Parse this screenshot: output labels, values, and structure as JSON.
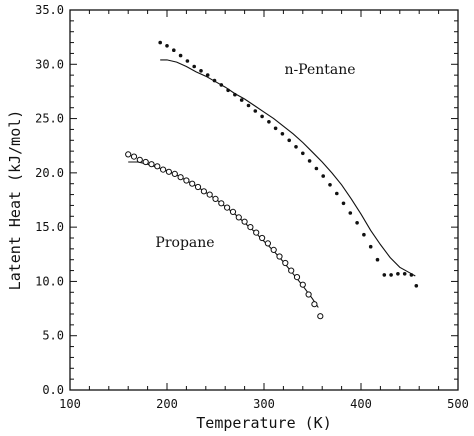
{
  "chart_data": {
    "type": "scatter",
    "title": "",
    "xlabel": "Temperature (K)",
    "ylabel": "Latent Heat (kJ/mol)",
    "xlim": [
      100,
      500
    ],
    "ylim": [
      0.0,
      35.0
    ],
    "x_ticks": [
      "100",
      "200",
      "300",
      "400",
      "500"
    ],
    "y_ticks": [
      "0.0",
      "5.0",
      "10.0",
      "15.0",
      "20.0",
      "25.0",
      "30.0",
      "35.0"
    ],
    "grid": false,
    "legend": "none",
    "annotations": [
      {
        "id": "pentane",
        "text": "n-Pentane"
      },
      {
        "id": "propane",
        "text": "Propane"
      }
    ],
    "series": [
      {
        "marker": "filled-dot",
        "points": {
          "x": [
            193,
            200,
            207,
            214,
            221,
            228,
            235,
            242,
            249,
            256,
            263,
            270,
            277,
            284,
            291,
            298,
            305,
            312,
            319,
            326,
            333,
            340,
            347,
            354,
            361,
            368,
            375,
            382,
            389,
            396,
            403,
            410,
            417,
            424,
            431,
            438,
            445,
            452,
            457
          ],
          "y": [
            32.0,
            31.7,
            31.3,
            30.8,
            30.3,
            29.8,
            29.4,
            29.0,
            28.5,
            28.1,
            27.6,
            27.2,
            26.7,
            26.2,
            25.7,
            25.2,
            24.7,
            24.1,
            23.6,
            23.0,
            22.4,
            21.8,
            21.1,
            20.4,
            19.7,
            18.9,
            18.1,
            17.2,
            16.3,
            15.4,
            14.3,
            13.2,
            12.0,
            10.6,
            10.6,
            10.7,
            10.7,
            10.6,
            9.6
          ]
        },
        "fit_curve": {
          "x": [
            193,
            200,
            210,
            220,
            230,
            240,
            250,
            260,
            270,
            280,
            290,
            300,
            310,
            320,
            330,
            340,
            350,
            360,
            370,
            380,
            390,
            400,
            410,
            420,
            430,
            440,
            450,
            456
          ],
          "y": [
            30.4,
            30.4,
            30.2,
            29.8,
            29.3,
            28.9,
            28.4,
            27.9,
            27.3,
            26.8,
            26.2,
            25.6,
            25.0,
            24.3,
            23.6,
            22.8,
            21.9,
            21.0,
            20.0,
            18.9,
            17.6,
            16.2,
            14.7,
            13.4,
            12.2,
            11.3,
            10.8,
            10.5
          ]
        }
      },
      {
        "marker": "open-circle",
        "points": {
          "x": [
            160,
            166,
            172,
            178,
            184,
            190,
            196,
            202,
            208,
            214,
            220,
            226,
            232,
            238,
            244,
            250,
            256,
            262,
            268,
            274,
            280,
            286,
            292,
            298,
            304,
            310,
            316,
            322,
            328,
            334,
            340,
            346,
            352,
            358
          ],
          "y": [
            21.7,
            21.5,
            21.2,
            21.0,
            20.8,
            20.6,
            20.3,
            20.1,
            19.9,
            19.6,
            19.3,
            19.0,
            18.7,
            18.3,
            18.0,
            17.6,
            17.2,
            16.8,
            16.4,
            15.9,
            15.5,
            15.0,
            14.5,
            14.0,
            13.5,
            12.9,
            12.3,
            11.7,
            11.0,
            10.4,
            9.7,
            8.8,
            7.9,
            6.8
          ]
        },
        "fit_curve": {
          "x": [
            160,
            170,
            180,
            190,
            200,
            210,
            220,
            230,
            240,
            250,
            260,
            270,
            280,
            290,
            300,
            310,
            320,
            330,
            340,
            350,
            356
          ],
          "y": [
            21.0,
            21.0,
            20.8,
            20.5,
            20.2,
            19.8,
            19.3,
            18.8,
            18.2,
            17.6,
            16.9,
            16.2,
            15.4,
            14.6,
            13.7,
            12.8,
            11.8,
            10.7,
            9.6,
            8.4,
            7.6
          ]
        }
      }
    ]
  }
}
